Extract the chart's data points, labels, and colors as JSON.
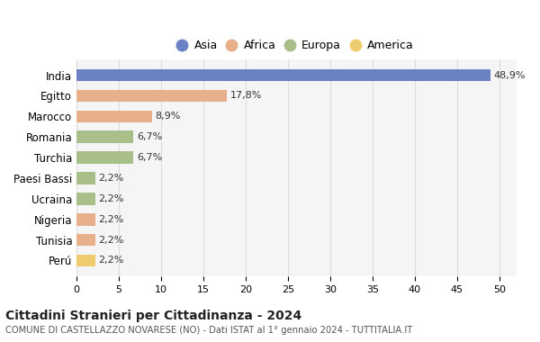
{
  "countries": [
    "India",
    "Egitto",
    "Marocco",
    "Romania",
    "Turchia",
    "Paesi Bassi",
    "Ucraina",
    "Nigeria",
    "Tunisia",
    "Perú"
  ],
  "values": [
    48.9,
    17.8,
    8.9,
    6.7,
    6.7,
    2.2,
    2.2,
    2.2,
    2.2,
    2.2
  ],
  "labels": [
    "48,9%",
    "17,8%",
    "8,9%",
    "6,7%",
    "6,7%",
    "2,2%",
    "2,2%",
    "2,2%",
    "2,2%",
    "2,2%"
  ],
  "continents": [
    "Asia",
    "Africa",
    "Africa",
    "Europa",
    "Europa",
    "Europa",
    "Europa",
    "Africa",
    "Africa",
    "America"
  ],
  "colors": {
    "Asia": "#6b81c4",
    "Africa": "#e8b08a",
    "Europa": "#a8bf8a",
    "America": "#f0cc70"
  },
  "legend_order": [
    "Asia",
    "Africa",
    "Europa",
    "America"
  ],
  "title": "Cittadini Stranieri per Cittadinanza - 2024",
  "subtitle": "COMUNE DI CASTELLAZZO NOVARESE (NO) - Dati ISTAT al 1° gennaio 2024 - TUTTITALIA.IT",
  "xlim": [
    0,
    52
  ],
  "xticks": [
    0,
    5,
    10,
    15,
    20,
    25,
    30,
    35,
    40,
    45,
    50
  ],
  "background_color": "#ffffff",
  "bar_background": "#f5f5f5",
  "grid_color": "#dddddd"
}
